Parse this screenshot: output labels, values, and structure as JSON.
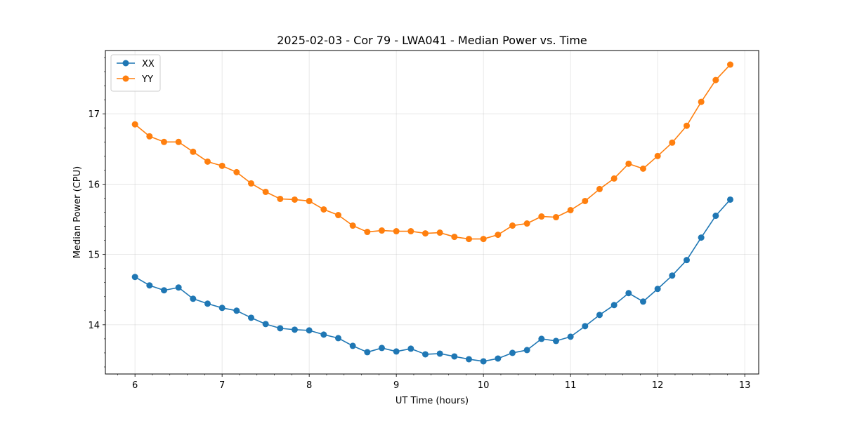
{
  "chart_data": {
    "type": "line",
    "title": "2025-02-03 - Cor 79 - LWA041 - Median Power vs. Time",
    "xlabel": "UT Time (hours)",
    "ylabel": "Median Power (CPU)",
    "xlim": [
      5.66,
      13.16
    ],
    "ylim": [
      13.3,
      17.9
    ],
    "xticks": [
      6,
      7,
      8,
      9,
      10,
      11,
      12,
      13
    ],
    "yticks": [
      14,
      15,
      16,
      17
    ],
    "grid": true,
    "legend_position": "top-left",
    "x": [
      6.0,
      6.1667,
      6.3333,
      6.5,
      6.6667,
      6.8333,
      7.0,
      7.1667,
      7.3333,
      7.5,
      7.6667,
      7.8333,
      8.0,
      8.1667,
      8.3333,
      8.5,
      8.6667,
      8.8333,
      9.0,
      9.1667,
      9.3333,
      9.5,
      9.6667,
      9.8333,
      10.0,
      10.1667,
      10.3333,
      10.5,
      10.6667,
      10.8333,
      11.0,
      11.1667,
      11.3333,
      11.5,
      11.6667,
      11.8333,
      12.0,
      12.1667,
      12.3333,
      12.5,
      12.6667,
      12.8333
    ],
    "series": [
      {
        "name": "XX",
        "color": "#1f77b4",
        "values": [
          14.68,
          14.56,
          14.49,
          14.53,
          14.37,
          14.3,
          14.24,
          14.2,
          14.1,
          14.01,
          13.95,
          13.93,
          13.92,
          13.86,
          13.81,
          13.7,
          13.61,
          13.67,
          13.62,
          13.66,
          13.58,
          13.59,
          13.55,
          13.51,
          13.48,
          13.52,
          13.6,
          13.64,
          13.8,
          13.77,
          13.83,
          13.98,
          14.14,
          14.28,
          14.45,
          14.33,
          14.51,
          14.7,
          14.92,
          15.24,
          15.55,
          15.78
        ]
      },
      {
        "name": "YY",
        "color": "#ff7f0e",
        "values": [
          16.85,
          16.68,
          16.6,
          16.6,
          16.46,
          16.32,
          16.26,
          16.17,
          16.01,
          15.89,
          15.79,
          15.78,
          15.76,
          15.64,
          15.56,
          15.41,
          15.32,
          15.34,
          15.33,
          15.33,
          15.3,
          15.31,
          15.25,
          15.22,
          15.22,
          15.28,
          15.41,
          15.44,
          15.54,
          15.53,
          15.63,
          15.76,
          15.93,
          16.08,
          16.29,
          16.22,
          16.4,
          16.59,
          16.83,
          17.17,
          17.48,
          17.7
        ]
      }
    ]
  }
}
